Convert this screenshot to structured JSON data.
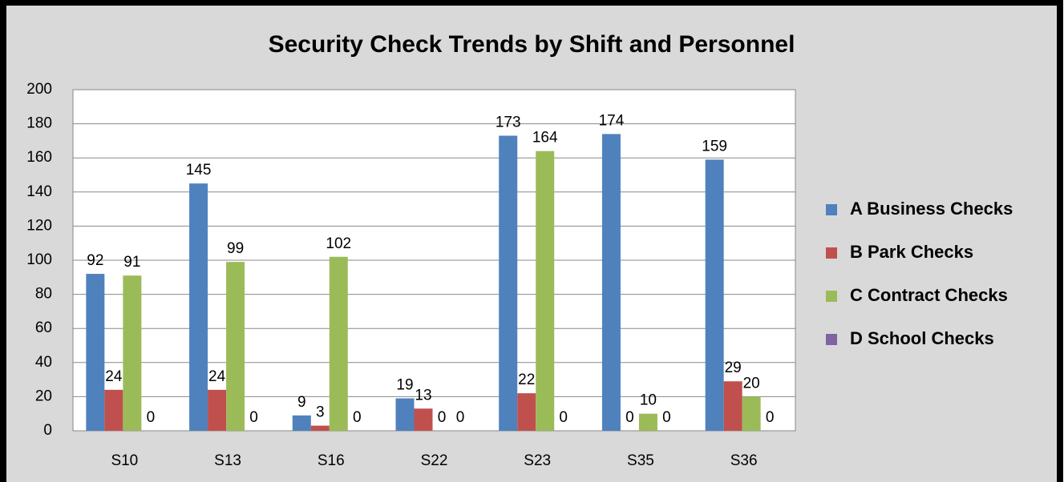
{
  "chart_data": {
    "type": "bar",
    "title": "Security Check Trends by Shift and Personnel",
    "categories": [
      "S10",
      "S13",
      "S16",
      "S22",
      "S23",
      "S35",
      "S36"
    ],
    "series": [
      {
        "name": "A Business Checks",
        "color": "#4f81bd",
        "values": [
          92,
          145,
          9,
          19,
          173,
          174,
          159
        ]
      },
      {
        "name": "B Park Checks",
        "color": "#c0504d",
        "values": [
          24,
          24,
          3,
          13,
          22,
          0,
          29
        ]
      },
      {
        "name": "C Contract Checks",
        "color": "#9bbb59",
        "values": [
          91,
          99,
          102,
          0,
          164,
          10,
          20
        ]
      },
      {
        "name": "D School Checks",
        "color": "#8064a2",
        "values": [
          0,
          0,
          0,
          0,
          0,
          0,
          0
        ]
      }
    ],
    "ylim": [
      0,
      200
    ],
    "yticks": [
      0,
      20,
      40,
      60,
      80,
      100,
      120,
      140,
      160,
      180,
      200
    ],
    "grid": true,
    "legend": "right"
  }
}
